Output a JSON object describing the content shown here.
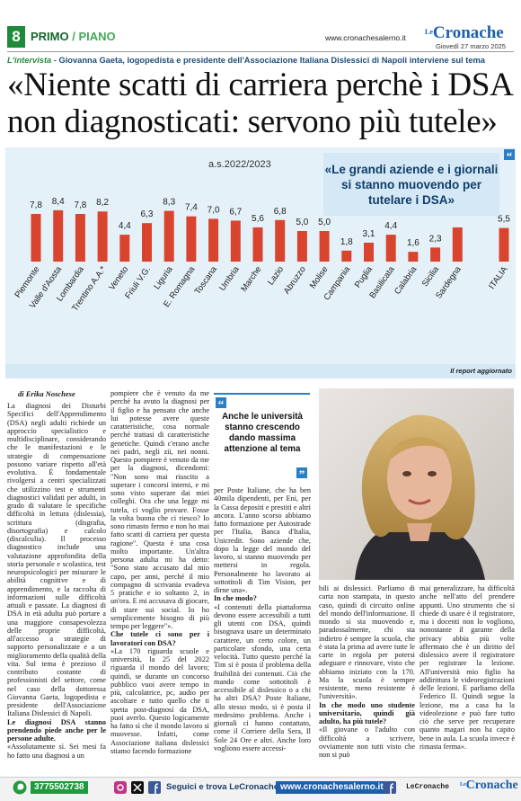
{
  "header": {
    "page_number": "8",
    "section": "PRIMO",
    "subsection": "/ PIANO",
    "website": "www.cronachesalerno.it",
    "logo_prefix": "Le",
    "logo": "Cronache",
    "date": "Giovedì 27 marzo 2025"
  },
  "kicker": {
    "label": "L'intervista",
    "text": " - Giovanna Gaeta, logopedista e presidente dell'Associazione Italiana Dislessici di Napoli interviene sul tema"
  },
  "headline": "«Niente scatti di carriera perchè i DSA non diagnosticati: servono più tutele»",
  "chart_data": {
    "type": "bar",
    "subtitle": "a.s.2022/2023",
    "quote": "«Le grandi aziende e i giornali si stanno muovendo per tutelare i DSA»",
    "caption": "Il report aggiornato",
    "color": "#d9442e",
    "categories": [
      "Piemonte",
      "Valle d'Aosta",
      "Lombardia",
      "Trentino A.A.*",
      "Veneto",
      "Friuli V.G.",
      "Liguria",
      "E. Romagna",
      "Toscana",
      "Umbria",
      "Marche",
      "Lazio",
      "Abruzzo",
      "Molise",
      "Campania",
      "Puglia",
      "Basilicata",
      "Calabria",
      "Sicilia",
      "Sardegna",
      "ITALIA"
    ],
    "values": [
      7.8,
      8.4,
      7.8,
      8.2,
      4.4,
      6.3,
      8.3,
      7.4,
      7.0,
      6.7,
      5.6,
      6.8,
      5.0,
      5.0,
      1.8,
      3.1,
      4.4,
      1.6,
      2.3,
      5.6,
      5.5
    ],
    "value_labels": [
      "7,8",
      "8,4",
      "7,8",
      "8,2",
      "4,4",
      "6,3",
      "8,3",
      "7,4",
      "7,0",
      "6,7",
      "5,6",
      "6,8",
      "5,0",
      "5,0",
      "1,8",
      "3,1",
      "4,4",
      "1,6",
      "2,3",
      null,
      "5,5"
    ]
  },
  "pull_quote": "Anche le università stanno crescendo dando massima attenzione al tema",
  "article": {
    "byline": "di Erika Noschese",
    "columns": [
      [
        {
          "text": "La diagnosi dei Disturbi Specifici dell'Apprendimento (DSA) negli adulti richiede un approccio specialistico e multidisciplinare, considerando che le manifestazioni e le strategie di compensazione possono variare rispetto all'età evolutiva. È fondamentale rivolgersi a centri specializzati che utilizzino test e strumenti diagnostici validati per adulti, in grado di valutare le specifiche difficoltà in lettura (dislessia), scrittura (disgrafia, disortografia) e calcolo (discalculia). Il processo diagnostico include una valutazione approfondita della storia personale e scolastica, test neuropsicologici per misurare le abilità cognitive e di apprendimento, e la raccolta di informazioni sulle difficoltà attuali e passate. La diagnosi di DSA in età adulta può portare a una maggiore consapevolezza delle proprie difficoltà, all'accesso a strategie di supporto personalizzate e a un miglioramento della qualità della vita. Sul tema è prezioso il contributo costante di professionisti del settore, come nel caso della dottoressa Giovanna Gaeta, logopedista e presidente dell'Associazione Italiana Dislessici di Napoli."
        },
        {
          "question": "Le diagnosi DSA stanno prendendo piede anche per le persone adulte."
        },
        {
          "text": "«Assolutamente sì. Sei mesi fa ho fatto una diagnosi a un"
        }
      ],
      [
        {
          "text": "pompiere che è venuto da me perché ha avuto la diagnosi per il figlio e ha pensato che anche lui potesse avere queste caratteristiche, cosa normale perché trattasi di caratteristiche genetiche. Quindi c'erano anche nei padri, negli zii, nei nonni. Questo pompiere è venuto da me per la diagnosi, dicendomi: \"Non sono mai riuscito a superare i concorsi interni, e mi sono visto superare dai miei colleghi. Ora che una legge mi tutela, ci voglio provare. Fosse la volta buona che ci riesco? Io sono rimasto fermo e non ho mai fatto scatti di carriera per questa ragione\". Questa è una cosa molto importante. Un'altra persona adulta mi ha detto: \"Sono stato accusato dal mio capo, per anni, perché il mio compagno di scrivania evadeva 5 pratiche e io soltanto 2, in un'ora. E mi accusava di giocare, di stare sui social. Io ho semplicemente bisogno di più tempo per leggere\"»."
        },
        {
          "question": "Che tutele ci sono per i lavoratori con DSA?"
        },
        {
          "text": "«La 170 riguarda scuole e università, la 25 del 2022 riguarda il mondo del lavoro; quindi, se durante un concorso pubblico vuoi avere tempo in più, calcolatrice, pc, audio per ascoltare e tutto quello che ti spetta post-diagnosi da DSA, puoi averlo. Questo logicamente ha fatto sì che il mondo lavoro si muovesse. Infatti, come Associazione italiana dislessici stiamo facendo formazione"
        }
      ],
      [
        {
          "text": "per Poste Italiane, che ha ben 40mila dipendenti, per Eni, per la Cassa depositi e prestiti e altri ancora. L'anno scorso abbiamo fatto formazione per Autostrade per l'Italia, Banca d'Italia, Unicredit. Sono aziende che, dopo la legge del mondo del lavoro, si stanno muovendo per mettersi in regola. Personalmente ho lavorato ai sottotitoli di Tim Vision, per dirne una»."
        },
        {
          "question": "In che modo?"
        },
        {
          "text": "«I contenuti della piattaforma devono essere accessibili a tutti gli utenti con DSA, quindi bisognava usare un determinato carattere, un certo colore, un particolare sfondo, una certa velocità. Tutto questo perché la Tim si è posta il problema della fruibilità dei contenuti. Ciò che mando come sottotitoli è accessibile al dislessico o a chi ha altri DSA? Poste Italiane, allo stesso modo, si è posta il medesimo problema. Anche i giornali ci hanno contattato, come il Corriere della Sera, Il Sole 24 Ore e altri. Anche loro vogliono essere accessi-"
        }
      ],
      [
        {
          "text": "bili ai dislessici. Parliamo di carta non stampata, in questo caso, quindi di circuito online del mondo dell'informazione. Il mondo si sta muovendo e, paradossalmente, chi sta indietro è sempre la scuola, che è stata la prima ad avere tutte le carte in regola per potersi adeguare e rinnovare, visto che abbiamo iniziato con la 170. Ma la scuola è sempre resistente, meno resistente è l'università»."
        },
        {
          "question": "In che modo uno studente universitario, quindi già adulto, ha più tutele?"
        },
        {
          "text": "«Il giovane o l'adulto con difficoltà a scrivere, ovviamente non tutti visto che non si può"
        }
      ],
      [
        {
          "text": "mai generalizzare, ha difficoltà anche nell'atto del prendere appunti. Uno strumento che si chiede di usare è il registratore, ma i docenti non lo vogliono, nonostante il garante della privacy abbia più volte affermato che è un diritto del dislessico avere il registratore per registrare la lezione. All'università mio figlio ha addirittura le videoregistrazioni delle lezioni. E parliamo della Federico II. Quindi segue la lezione, ma a casa ha la videolezione e può fare tutto ciò che serve per recuperare quanto magari non ha capito bene in aula. La scuola invece è rimasta ferma»."
        }
      ]
    ]
  },
  "footer": {
    "phone": "3775502738",
    "follow": "Seguici e trova LeCronache",
    "website": "www.cronachesalerno.it",
    "brand": "LeCronache",
    "logo_prefix": "Le",
    "logo": "Cronache"
  }
}
